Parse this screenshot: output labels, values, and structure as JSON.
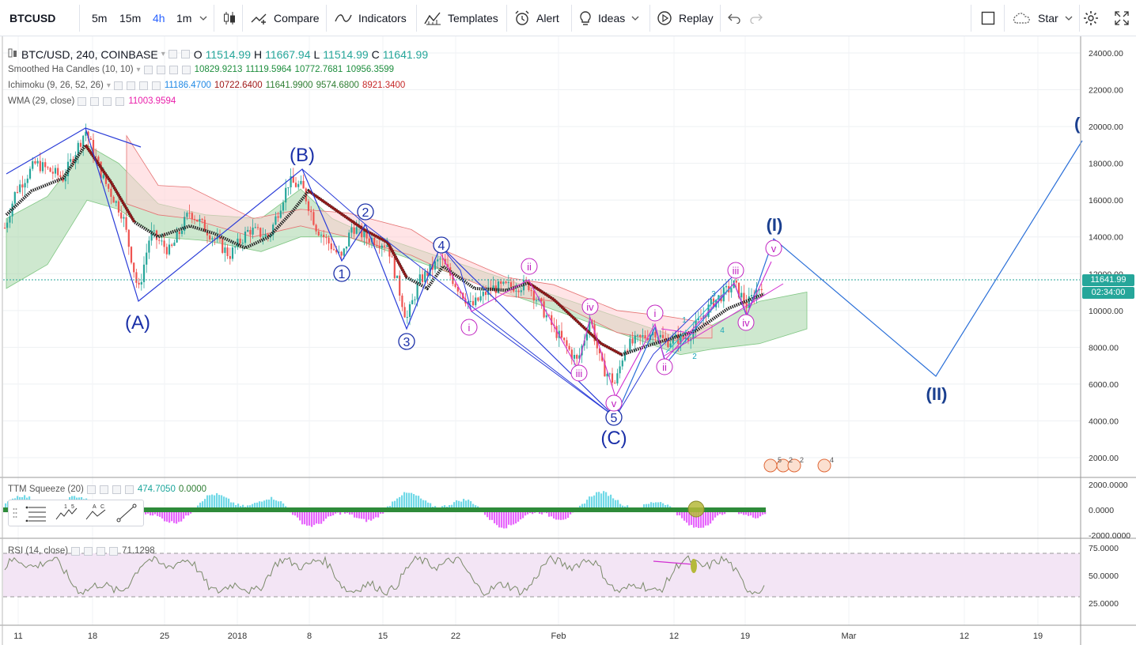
{
  "toolbar": {
    "symbol": "BTCUSD",
    "intervals": [
      "5m",
      "15m",
      "4h",
      "1m"
    ],
    "active_interval": "4h",
    "compare": "Compare",
    "indicators": "Indicators",
    "templates": "Templates",
    "alert": "Alert",
    "ideas": "Ideas",
    "replay": "Replay",
    "star": "Star"
  },
  "legend": {
    "main": {
      "title": "BTC/USD, 240, COINBASE",
      "o_label": "O",
      "o": "11514.99",
      "h_label": "H",
      "h": "11667.94",
      "l_label": "L",
      "l": "11514.99",
      "c_label": "C",
      "c": "11641.99"
    },
    "ha": {
      "title": "Smoothed Ha Candles (10, 10)",
      "v1": "10829.9213",
      "v2": "11119.5964",
      "v3": "10772.7681",
      "v4": "10956.3599"
    },
    "ichimoku": {
      "title": "Ichimoku (9, 26, 52, 26)",
      "v1": "11186.4700",
      "v2": "10722.6400",
      "v3": "11641.9900",
      "v4": "9574.6800",
      "v5": "8921.3400"
    },
    "wma": {
      "title": "WMA (29, close)",
      "v1": "11003.9594"
    },
    "ttm": {
      "title": "TTM Squeeze (20)",
      "v1": "474.7050",
      "v2": "0.0000"
    },
    "rsi": {
      "title": "RSI (14, close)",
      "v1": "71.1298"
    }
  },
  "price_axis": [
    "24000.00",
    "22000.00",
    "20000.00",
    "18000.00",
    "16000.00",
    "14000.00",
    "12000.00",
    "10000.00",
    "8000.00",
    "6000.00",
    "4000.00",
    "2000.00"
  ],
  "last_price": "11641.99",
  "countdown": "02:34:00",
  "ttm_axis": [
    "2000.0000",
    "0.0000",
    "-2000.0000"
  ],
  "rsi_axis": [
    "75.0000",
    "50.0000",
    "25.0000"
  ],
  "time_axis": [
    "11",
    "18",
    "25",
    "2018",
    "8",
    "15",
    "22",
    "Feb",
    "12",
    "19",
    "Mar",
    "12",
    "19"
  ],
  "wave_labels": {
    "A": "(A)",
    "B": "(B)",
    "C": "(C)",
    "I": "(I)",
    "II": "(II)",
    "III": "(",
    "n1": "1",
    "n2": "2",
    "n3": "3",
    "n4": "4",
    "n5": "5",
    "i1": "i",
    "ii1": "ii",
    "iii1": "iii",
    "iv1": "iv",
    "v1": "v",
    "i2": "i",
    "ii2": "ii",
    "iii2": "iii",
    "iv2": "iv",
    "v2": "v",
    "s1": "1",
    "s2": "2",
    "s3": "3",
    "s4": "4",
    "ev1": "5",
    "ev2": "2",
    "ev3": "2",
    "ev4": "4"
  },
  "colors": {
    "accent": "#2962ff",
    "up": "#26a69a",
    "down": "#ef5350",
    "wave_primary": "#1a3dbd",
    "wave_minor": "#c020c0",
    "ichimoku_green": "#a5d6a7",
    "ichimoku_red": "#ffcdd2",
    "rsi_band": "#f3e5f5"
  }
}
